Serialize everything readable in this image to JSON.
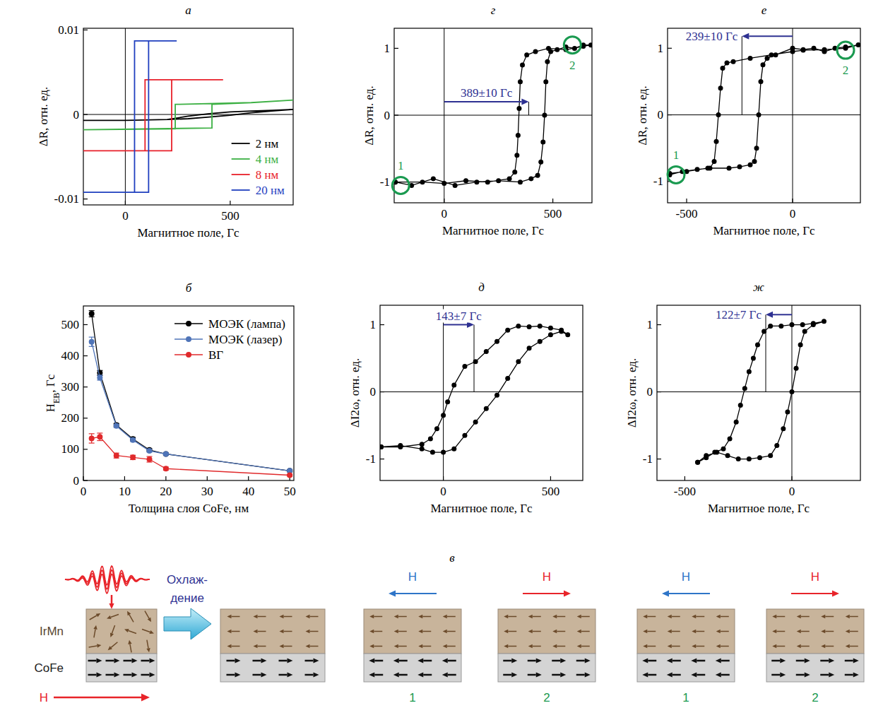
{
  "chart_data": [
    {
      "panel": "а",
      "type": "line",
      "x_label": "Магнитное поле, Гс",
      "y_label": "ΔR, отн. ед.",
      "xlim": [
        -200,
        800
      ],
      "ylim": [
        -0.0107,
        0.0102
      ],
      "xticks": [
        0,
        500
      ],
      "yticks": [
        -0.01,
        0,
        0.01
      ],
      "legend": "lower right",
      "series": [
        {
          "name": "2 нм",
          "color": "#000000",
          "x": [
            -200,
            0,
            200,
            300,
            400,
            500,
            600,
            700,
            800,
            700,
            600,
            500,
            400,
            300,
            250,
            200,
            0,
            -200
          ],
          "values": [
            -0.0007,
            -0.0007,
            -0.0006,
            -0.0005,
            -0.0003,
            -0.0001,
            0.0002,
            0.0004,
            0.0006,
            0.0005,
            0.0004,
            0.0003,
            0.0001,
            -0.0002,
            -0.0004,
            -0.0006,
            -0.0007,
            -0.0007
          ]
        },
        {
          "name": "4 нм",
          "color": "#3cb043",
          "x": [
            -200,
            413,
            413,
            600,
            800,
            600,
            238,
            238,
            -200
          ],
          "values": [
            -0.0018,
            -0.0016,
            0.0012,
            0.0014,
            0.0017,
            0.0014,
            0.0012,
            -0.0017,
            -0.0018
          ]
        },
        {
          "name": "8 нм",
          "color": "#e8202a",
          "x": [
            -200,
            221,
            221,
            466,
            94,
            94,
            -200
          ],
          "values": [
            -0.0043,
            -0.0043,
            0.0041,
            0.0041,
            0.0041,
            -0.0043,
            -0.0043
          ]
        },
        {
          "name": "20 нм",
          "color": "#1f3fbf",
          "x": [
            -200,
            111,
            111,
            245,
            44,
            44,
            -200
          ],
          "values": [
            -0.0092,
            -0.0092,
            0.0087,
            0.0087,
            0.0087,
            -0.0092,
            -0.0092
          ]
        }
      ]
    },
    {
      "panel": "г",
      "type": "line",
      "marker": "circle",
      "x_label": "Магнитное поле, Гс",
      "y_label": "ΔR, отн. ед.",
      "xlim": [
        -230,
        680
      ],
      "ylim": [
        -1.31,
        1.3
      ],
      "xticks": [
        0,
        500
      ],
      "yticks": [
        -1,
        0,
        1
      ],
      "series": [
        {
          "color": "#000000",
          "x": [
            -225,
            -150,
            -50,
            50,
            150,
            250,
            350,
            400,
            430,
            445,
            455,
            462,
            468,
            475,
            490,
            520,
            560,
            600,
            640,
            675,
            640,
            560,
            480,
            420,
            380,
            360,
            350,
            345,
            340,
            335,
            325,
            300,
            200,
            100,
            0,
            -100,
            -225
          ],
          "values": [
            -1.0,
            -1.05,
            -0.95,
            -1.05,
            -1.0,
            -0.98,
            -1.0,
            -0.95,
            -0.9,
            -0.7,
            -0.4,
            0.0,
            0.5,
            0.8,
            0.95,
            0.98,
            1.02,
            1.0,
            1.05,
            1.05,
            1.03,
            0.98,
            1.0,
            0.95,
            0.9,
            0.75,
            0.5,
            0.1,
            -0.3,
            -0.6,
            -0.85,
            -0.95,
            -1.0,
            -0.98,
            -1.02,
            -1.0,
            -1.0
          ]
        }
      ],
      "annotations": [
        {
          "text": "389±10 Гс",
          "value": 389,
          "y": 0.2,
          "color": "#2e3192"
        }
      ],
      "points": [
        {
          "label": "1",
          "x": -200,
          "y": -1.05,
          "color": "#1a9a50"
        },
        {
          "label": "2",
          "x": 590,
          "y": 1.05,
          "color": "#1a9a50"
        }
      ]
    },
    {
      "panel": "е",
      "type": "line",
      "marker": "circle",
      "x_label": "Магнитное поле, Гс",
      "y_label": "ΔR, отн. ед.",
      "xlim": [
        -590,
        320
      ],
      "ylim": [
        -1.32,
        1.3
      ],
      "xticks": [
        -500,
        0
      ],
      "yticks": [
        -1,
        0,
        1
      ],
      "series": [
        {
          "color": "#000000",
          "x": [
            -580,
            -500,
            -400,
            -300,
            -250,
            -200,
            -180,
            -170,
            -160,
            -150,
            -140,
            -120,
            -80,
            0,
            50,
            100,
            150,
            200,
            250,
            310,
            250,
            150,
            50,
            0,
            -100,
            -200,
            -280,
            -310,
            -330,
            -340,
            -350,
            -360,
            -370,
            -390,
            -450,
            -520,
            -580
          ],
          "values": [
            -0.88,
            -0.85,
            -0.8,
            -0.8,
            -0.78,
            -0.75,
            -0.7,
            -0.5,
            0.0,
            0.5,
            0.75,
            0.85,
            0.9,
            1.0,
            0.98,
            1.0,
            0.95,
            1.0,
            1.02,
            1.05,
            1.0,
            0.98,
            0.97,
            0.95,
            0.9,
            0.85,
            0.8,
            0.78,
            0.7,
            0.4,
            0.0,
            -0.4,
            -0.7,
            -0.8,
            -0.82,
            -0.85,
            -0.9
          ]
        }
      ],
      "annotations": [
        {
          "text": "239±10 Гс",
          "value": -239,
          "y": 1.18,
          "color": "#2e3192"
        }
      ],
      "points": [
        {
          "label": "1",
          "x": -550,
          "y": -0.9,
          "color": "#1a9a50"
        },
        {
          "label": "2",
          "x": 250,
          "y": 0.97,
          "color": "#1a9a50"
        }
      ]
    },
    {
      "panel": "б",
      "type": "line",
      "marker": "circle",
      "x_label": "Толщина слоя CoFe, нм",
      "y_label": [
        "H",
        "EB",
        ", Гс"
      ],
      "xlim": [
        0,
        51
      ],
      "ylim": [
        0,
        560
      ],
      "xticks": [
        0,
        10,
        20,
        30,
        40,
        50
      ],
      "yticks": [
        0,
        100,
        200,
        300,
        400,
        500
      ],
      "legend": "upper right",
      "series": [
        {
          "name": "МОЭК (лампа)",
          "color": "#000000",
          "x": [
            2,
            4,
            8,
            12,
            16,
            20,
            50
          ],
          "values": [
            535,
            345,
            178,
            133,
            98,
            85,
            31
          ],
          "error": [
            10,
            8,
            5,
            5,
            4,
            3,
            3
          ]
        },
        {
          "name": "МОЭК (лазер)",
          "color": "#4f74b8",
          "x": [
            2,
            4,
            8,
            12,
            16,
            20,
            50
          ],
          "values": [
            445,
            330,
            175,
            130,
            95,
            85,
            31
          ],
          "error": [
            15,
            8,
            5,
            5,
            4,
            3,
            3
          ]
        },
        {
          "name": "ВГ",
          "color": "#e0292b",
          "x": [
            2,
            4,
            8,
            12,
            16,
            20,
            50
          ],
          "values": [
            135,
            140,
            80,
            74,
            68,
            38,
            17
          ],
          "error": [
            15,
            12,
            8,
            7,
            9,
            5,
            3
          ]
        }
      ]
    },
    {
      "panel": "д",
      "type": "line",
      "marker": "circle",
      "x_label": "Магнитное поле, Гс",
      "y_label": "ΔI2ω, отн. ед.",
      "xlim": [
        -295,
        650
      ],
      "ylim": [
        -1.32,
        1.29
      ],
      "xticks": [
        0,
        500
      ],
      "yticks": [
        -1,
        0,
        1
      ],
      "series": [
        {
          "color": "#000000",
          "x": [
            -290,
            -200,
            -100,
            -50,
            0,
            50,
            100,
            150,
            200,
            250,
            300,
            350,
            400,
            450,
            500,
            550,
            580,
            550,
            500,
            450,
            400,
            350,
            300,
            250,
            200,
            150,
            100,
            50,
            20,
            0,
            -30,
            -60,
            -100,
            -200,
            -290
          ],
          "values": [
            -0.82,
            -0.8,
            -0.85,
            -0.9,
            -0.9,
            -0.85,
            -0.65,
            -0.45,
            -0.25,
            -0.05,
            0.2,
            0.45,
            0.65,
            0.75,
            0.85,
            0.9,
            0.85,
            0.92,
            0.95,
            0.98,
            0.97,
            0.98,
            0.92,
            0.75,
            0.6,
            0.45,
            0.38,
            0.1,
            -0.15,
            -0.35,
            -0.55,
            -0.7,
            -0.78,
            -0.82,
            -0.82
          ]
        }
      ],
      "annotations": [
        {
          "text": "143±7 Гс",
          "value": 143,
          "y": 1.0,
          "color": "#2e3192"
        }
      ]
    },
    {
      "panel": "ж",
      "type": "line",
      "marker": "circle",
      "x_label": "Магнитное поле, Гс",
      "y_label": "ΔI2ω, отн. ед.",
      "xlim": [
        -630,
        320
      ],
      "ylim": [
        -1.32,
        1.29
      ],
      "xticks": [
        -500,
        0
      ],
      "yticks": [
        -1,
        0,
        1
      ],
      "series": [
        {
          "color": "#000000",
          "x": [
            -440,
            -400,
            -350,
            -300,
            -250,
            -200,
            -150,
            -100,
            -70,
            -40,
            -20,
            0,
            20,
            40,
            60,
            100,
            150,
            100,
            50,
            0,
            -50,
            -100,
            -130,
            -160,
            -180,
            -200,
            -220,
            -240,
            -260,
            -290,
            -320,
            -360,
            -400,
            -440
          ],
          "values": [
            -1.05,
            -0.95,
            -0.9,
            -0.95,
            -1.0,
            -1.0,
            -0.98,
            -0.95,
            -0.8,
            -0.55,
            -0.3,
            0.0,
            0.35,
            0.7,
            0.9,
            1.0,
            1.05,
            1.02,
            1.0,
            1.0,
            0.98,
            0.98,
            0.9,
            0.7,
            0.5,
            0.3,
            0.05,
            -0.2,
            -0.45,
            -0.7,
            -0.85,
            -0.9,
            -0.98,
            -1.05
          ]
        }
      ],
      "annotations": [
        {
          "text": "122±7 Гс",
          "value": -122,
          "y": 1.15,
          "color": "#2e3192"
        }
      ]
    }
  ],
  "diagram": {
    "label": "в",
    "layers": [
      "IrMn",
      "CoFe"
    ],
    "field": "H",
    "cooling": [
      "Охлаж-",
      "дение"
    ],
    "states": [
      "1",
      "2",
      "1",
      "2"
    ]
  }
}
